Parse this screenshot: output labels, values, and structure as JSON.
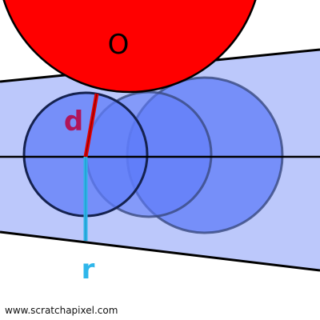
{
  "labels": {
    "object_label": "O",
    "distance_label": "d",
    "radius_label": "r"
  },
  "watermark": "www.scratchapixel.com",
  "colors": {
    "background": "#ffffff",
    "cone_fill": "#bcc8fb",
    "cone_edge": "#000000",
    "sphere_fill": "#5f7cf8",
    "sphere_stroke": "#1a2a66",
    "object_fill": "#ff0000",
    "distance_line": "#e10000",
    "radius_line": "#2fb6ea",
    "distance_text": "#b0155a",
    "radius_text": "#2fb6ea"
  }
}
